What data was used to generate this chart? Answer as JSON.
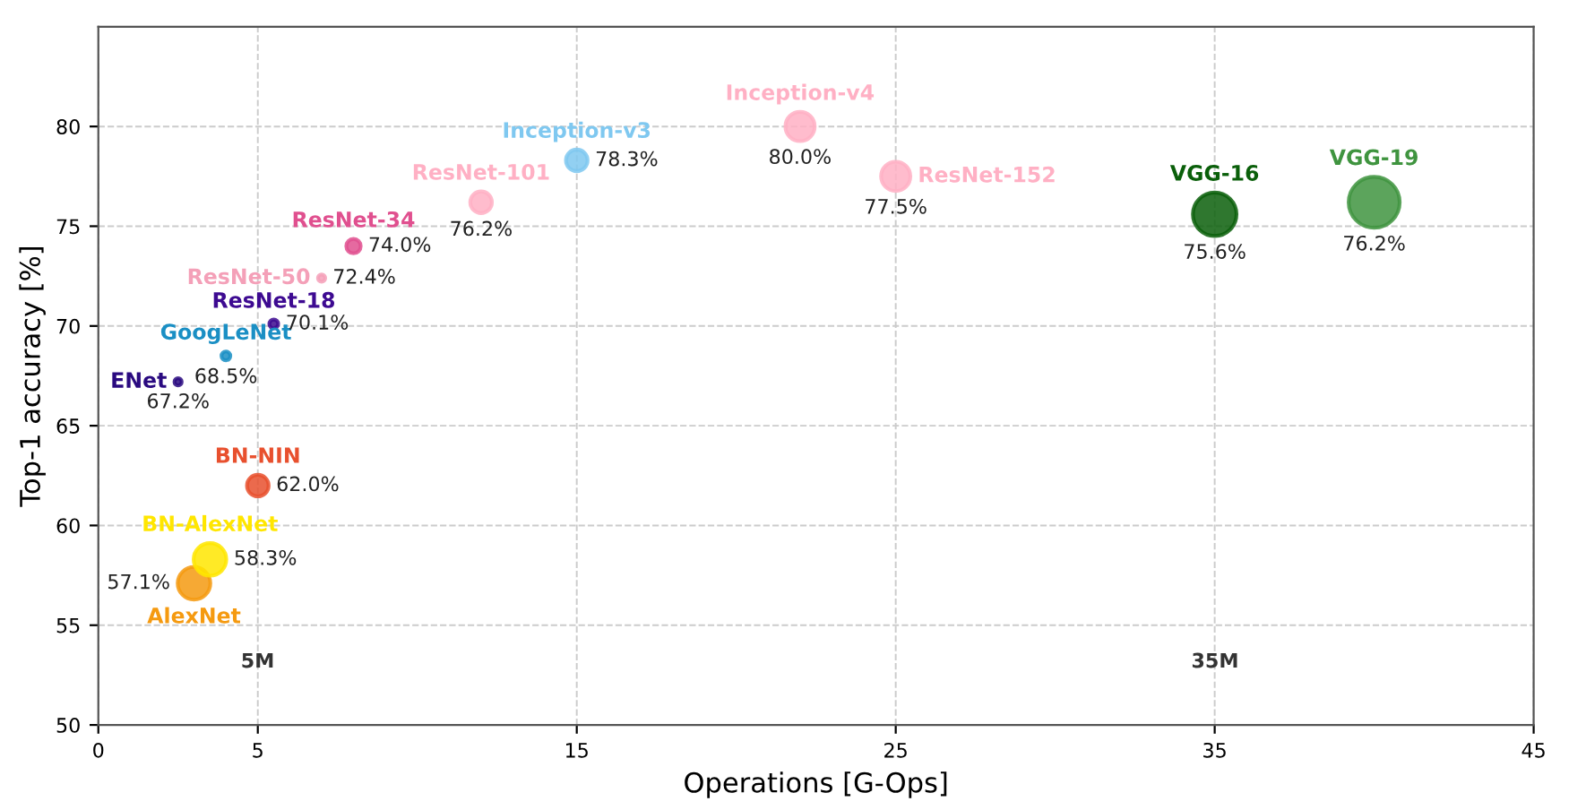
{
  "chart_data": {
    "type": "bubble",
    "xlabel": "Operations [G-Ops]",
    "ylabel": "Top-1 accuracy [%]",
    "xlim": [
      0,
      45
    ],
    "xticks": [
      0,
      5,
      15,
      25,
      35,
      45
    ],
    "ylim": [
      50,
      85
    ],
    "yticks": [
      50,
      55,
      60,
      65,
      70,
      75,
      80
    ],
    "grid": true,
    "legend": false,
    "series": [
      {
        "name": "ENet",
        "color": "#2a0a80",
        "x": [
          2.5
        ],
        "values": [
          67.2
        ],
        "sizes": [
          0.02
        ],
        "value_labels": [
          "67.2%"
        ]
      },
      {
        "name": "GoogLeNet",
        "color": "#1a8fc4",
        "x": [
          4.0
        ],
        "values": [
          68.5
        ],
        "sizes": [
          0.03
        ],
        "value_labels": [
          "68.5%"
        ]
      },
      {
        "name": "ResNet-18",
        "color": "#3d0a91",
        "x": [
          5.5
        ],
        "values": [
          70.1
        ],
        "sizes": [
          0.03
        ],
        "value_labels": [
          "70.1%"
        ]
      },
      {
        "name": "ResNet-50",
        "color": "#f4a0b8",
        "x": [
          7.0
        ],
        "values": [
          72.4
        ],
        "sizes": [
          0.02
        ],
        "value_labels": [
          "72.4%"
        ]
      },
      {
        "name": "ResNet-34",
        "color": "#e0508f",
        "x": [
          8.0
        ],
        "values": [
          74.0
        ],
        "sizes": [
          0.08
        ],
        "value_labels": [
          "74.0%"
        ]
      },
      {
        "name": "ResNet-101",
        "color": "#ffb0c4",
        "x": [
          12.0
        ],
        "values": [
          76.2
        ],
        "sizes": [
          0.18
        ],
        "value_labels": [
          "76.2%"
        ]
      },
      {
        "name": "Inception-v3",
        "color": "#7fc8f0",
        "x": [
          15.0
        ],
        "values": [
          78.3
        ],
        "sizes": [
          0.18
        ],
        "value_labels": [
          "78.3%"
        ]
      },
      {
        "name": "Inception-v4",
        "color": "#ffb0c4",
        "x": [
          22.0
        ],
        "values": [
          80.0
        ],
        "sizes": [
          0.33
        ],
        "value_labels": [
          "80.0%"
        ]
      },
      {
        "name": "ResNet-152",
        "color": "#ffb0c4",
        "x": [
          25.0
        ],
        "values": [
          77.5
        ],
        "sizes": [
          0.33
        ],
        "value_labels": [
          "77.5%"
        ]
      },
      {
        "name": "BN-NIN",
        "color": "#e8502e",
        "x": [
          5.0
        ],
        "values": [
          62.0
        ],
        "sizes": [
          0.18
        ],
        "value_labels": [
          "62.0%"
        ]
      },
      {
        "name": "AlexNet",
        "color": "#f59a10",
        "x": [
          3.0
        ],
        "values": [
          57.1
        ],
        "sizes": [
          0.41
        ],
        "value_labels": [
          "57.1%"
        ]
      },
      {
        "name": "BN-AlexNet",
        "color": "#ffe600",
        "x": [
          3.5
        ],
        "values": [
          58.3
        ],
        "sizes": [
          0.41
        ],
        "value_labels": [
          "58.3%"
        ]
      },
      {
        "name": "VGG-16",
        "color": "#0a5f0a",
        "x": [
          35.0
        ],
        "values": [
          75.6
        ],
        "sizes": [
          0.73
        ],
        "value_labels": [
          "75.6%"
        ]
      },
      {
        "name": "VGG-19",
        "color": "#3f943f",
        "x": [
          40.0
        ],
        "values": [
          76.2
        ],
        "sizes": [
          1.0
        ],
        "value_labels": [
          "76.2%"
        ]
      }
    ],
    "annotations": [
      "5M",
      "35M"
    ]
  }
}
